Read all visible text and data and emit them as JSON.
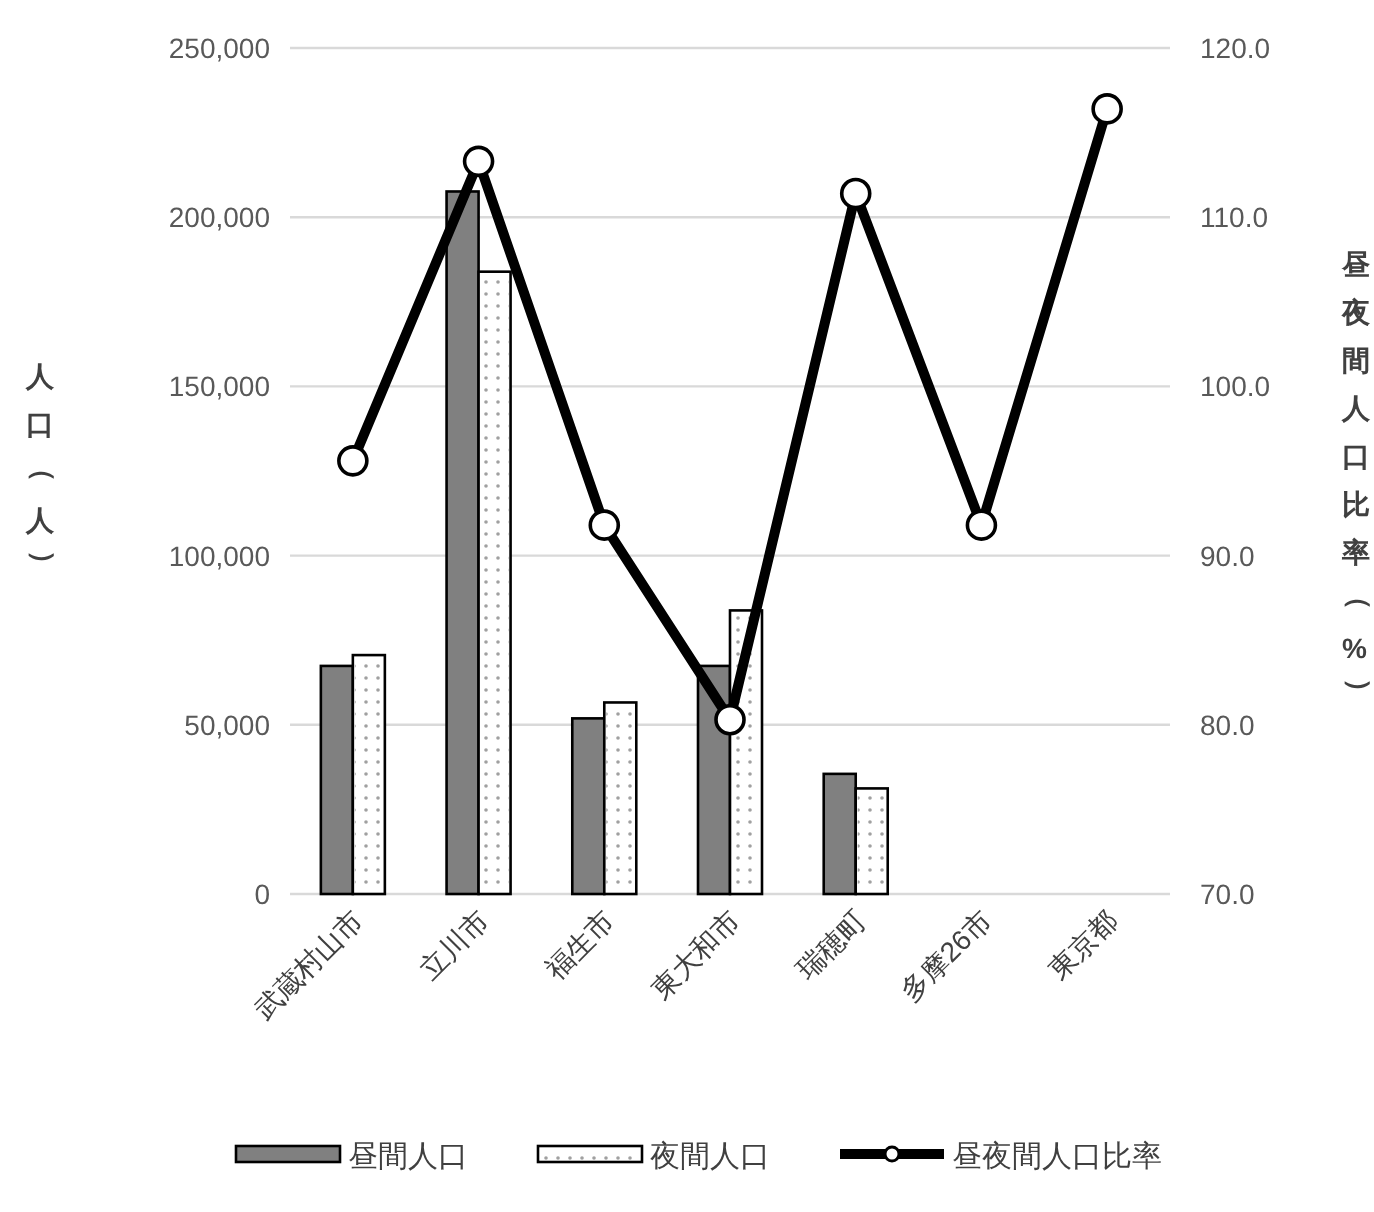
{
  "chart_data": {
    "type": "bar",
    "ylabel": "人口（人）",
    "y2label": "昼夜間人口比率（%）",
    "categories": [
      "武蔵村山市",
      "立川市",
      "福生市",
      "東大和市",
      "瑞穂町",
      "多摩26市",
      "東京都"
    ],
    "series": [
      {
        "name": "昼間人口",
        "color": "#808080",
        "values": [
          67400,
          207600,
          51900,
          67400,
          35500,
          null,
          null
        ]
      },
      {
        "name": "夜間人口",
        "color": "#ffffff",
        "values": [
          70600,
          183900,
          56600,
          83800,
          31200,
          null,
          null
        ]
      },
      {
        "name": "昼夜間人口比率",
        "type": "line",
        "axis": "y2",
        "color": "#000000",
        "marker": "circle",
        "line_style": "solid",
        "values": [
          95.6,
          113.3,
          91.8,
          80.3,
          111.4,
          91.8,
          116.4
        ]
      }
    ],
    "ylim": [
      0,
      250000
    ],
    "yticks": [
      0,
      {
        "value": 50000,
        "label": "50,000"
      },
      {
        "value": 100000,
        "label": "100,000"
      },
      {
        "value": 150000,
        "label": "150,000"
      },
      {
        "value": 200000,
        "label": "200,000"
      },
      {
        "value": 250000,
        "label": "250,000"
      }
    ],
    "y2lim": [
      70,
      120
    ],
    "y2ticks": [
      {
        "value": 70,
        "label": "70.0"
      },
      {
        "value": 80,
        "label": "80.0"
      },
      {
        "value": 90,
        "label": "90.0"
      },
      {
        "value": 100,
        "label": "100.0"
      },
      {
        "value": 110,
        "label": "110.0"
      },
      {
        "value": 120,
        "label": "120.0"
      }
    ],
    "grid": "y",
    "legend": "bottom"
  }
}
